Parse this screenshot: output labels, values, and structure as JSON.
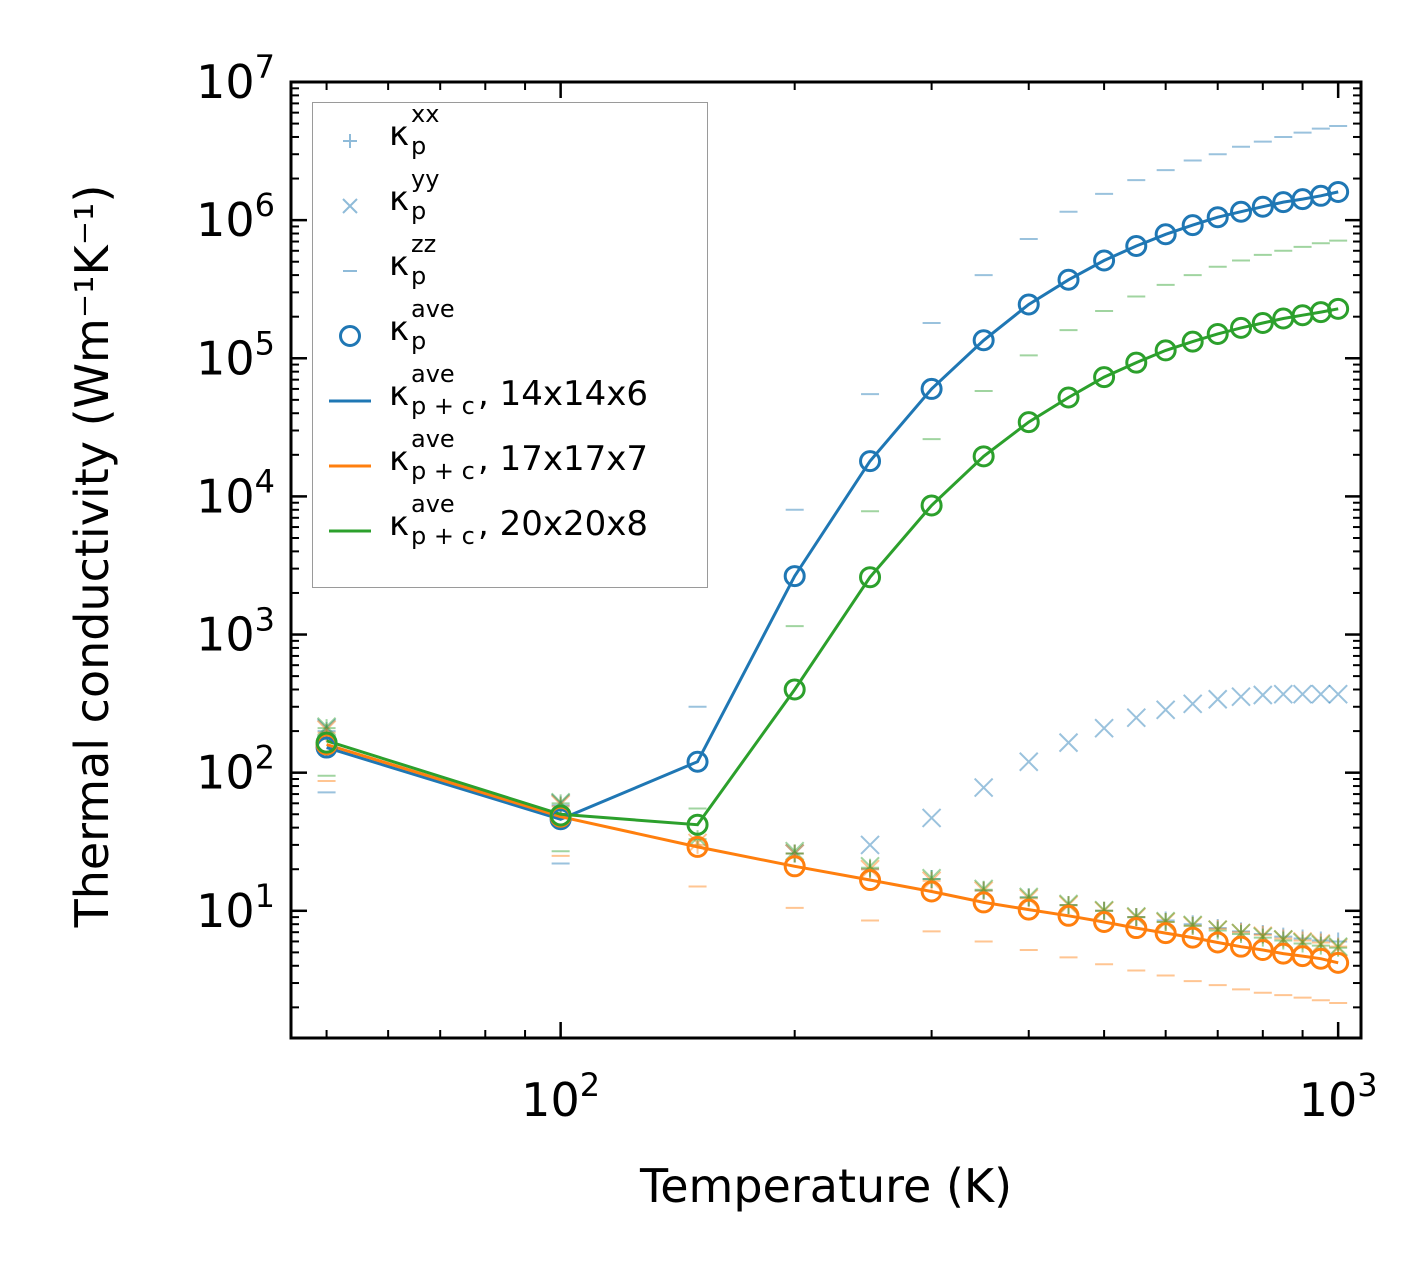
{
  "chart_data": {
    "type": "scatter",
    "title": "",
    "xlabel": "Temperature (K)",
    "ylabel": "Thermal conductivity (Wm⁻¹K⁻¹)",
    "xscale": "log",
    "yscale": "log",
    "xlim": [
      45,
      1070
    ],
    "ylim": [
      1.2,
      10000000
    ],
    "x_ticks": [
      {
        "value": 100,
        "base": "10",
        "exp": "2"
      },
      {
        "value": 1000,
        "base": "10",
        "exp": "3"
      }
    ],
    "y_ticks": [
      {
        "value": 10,
        "base": "10",
        "exp": "1"
      },
      {
        "value": 100,
        "base": "10",
        "exp": "2"
      },
      {
        "value": 1000,
        "base": "10",
        "exp": "3"
      },
      {
        "value": 10000,
        "base": "10",
        "exp": "4"
      },
      {
        "value": 100000,
        "base": "10",
        "exp": "5"
      },
      {
        "value": 1000000,
        "base": "10",
        "exp": "6"
      },
      {
        "value": 10000000,
        "base": "10",
        "exp": "7"
      }
    ],
    "legend_position": "upper-left",
    "colors": {
      "c14": "#1f77b4",
      "c17": "#ff7f0e",
      "c20": "#2ca02c"
    },
    "x": [
      50,
      100,
      150,
      200,
      250,
      300,
      350,
      400,
      450,
      500,
      550,
      600,
      650,
      700,
      750,
      800,
      850,
      900,
      950,
      1000
    ],
    "series": [
      {
        "name": "kp_xx_14x14x6",
        "grid": "14x14x6",
        "marker": "plus",
        "color": "#1f77b4",
        "alpha": 0.45,
        "values": [
          200,
          58,
          null,
          26,
          20,
          17,
          14,
          12.5,
          11,
          10,
          9,
          8.5,
          8,
          7.5,
          7.1,
          6.8,
          6.5,
          6.3,
          6.1,
          6.0
        ]
      },
      {
        "name": "kp_yy_14x14x6",
        "grid": "14x14x6",
        "marker": "x",
        "color": "#1f77b4",
        "alpha": 0.45,
        "values": [
          210,
          60,
          null,
          26,
          30,
          47,
          78,
          120,
          165,
          210,
          250,
          285,
          315,
          340,
          355,
          365,
          370,
          370,
          370,
          370
        ]
      },
      {
        "name": "kp_zz_14x14x6",
        "grid": "14x14x6",
        "marker": "dash",
        "color": "#1f77b4",
        "alpha": 0.45,
        "values": [
          72,
          22,
          300,
          8000,
          55000,
          180000,
          400000,
          730000,
          1150000,
          1550000,
          1950000,
          2300000,
          2700000,
          3000000,
          3400000,
          3700000,
          4000000,
          4300000,
          4600000,
          4800000
        ]
      },
      {
        "name": "kp_ave_14x14x6",
        "grid": "14x14x6",
        "marker": "circle",
        "color": "#1f77b4",
        "alpha": 1,
        "values": [
          152,
          46,
          120,
          2650,
          18000,
          60000,
          135000,
          245000,
          370000,
          510000,
          650000,
          790000,
          920000,
          1050000,
          1150000,
          1250000,
          1350000,
          1420000,
          1500000,
          1600000
        ]
      },
      {
        "name": "kp_xx_17x17x7",
        "grid": "17x17x7",
        "marker": "plus",
        "color": "#ff7f0e",
        "alpha": 0.45,
        "values": [
          195,
          57,
          30,
          26,
          20,
          16.5,
          14,
          12.3,
          11,
          10,
          9,
          8.3,
          7.8,
          7.4,
          7.0,
          6.7,
          6.3,
          6.1,
          5.9,
          5.5
        ]
      },
      {
        "name": "kp_yy_17x17x7",
        "grid": "17x17x7",
        "marker": "x",
        "color": "#ff7f0e",
        "alpha": 0.45,
        "values": [
          205,
          59,
          31,
          26,
          20,
          16.5,
          14,
          12.3,
          11,
          10,
          9,
          8.3,
          7.8,
          7.3,
          6.9,
          6.6,
          6.2,
          6.0,
          5.8,
          5.4
        ]
      },
      {
        "name": "kp_zz_17x17x7",
        "grid": "17x17x7",
        "marker": "dash",
        "color": "#ff7f0e",
        "alpha": 0.45,
        "values": [
          87,
          25,
          15,
          10.5,
          8.5,
          7.1,
          6.0,
          5.2,
          4.6,
          4.1,
          3.7,
          3.4,
          3.1,
          2.9,
          2.7,
          2.55,
          2.45,
          2.35,
          2.25,
          2.15
        ]
      },
      {
        "name": "kp_ave_17x17x7",
        "grid": "17x17x7",
        "marker": "circle",
        "color": "#ff7f0e",
        "alpha": 1,
        "values": [
          160,
          48,
          29,
          21,
          16.7,
          13.8,
          11.5,
          10.2,
          9.2,
          8.3,
          7.5,
          6.9,
          6.4,
          5.9,
          5.5,
          5.2,
          4.9,
          4.7,
          4.5,
          4.2
        ]
      },
      {
        "name": "kp_xx_20x20x8",
        "grid": "20x20x8",
        "marker": "plus",
        "color": "#2ca02c",
        "alpha": 0.45,
        "values": [
          210,
          60,
          33,
          26,
          20.5,
          17,
          14.2,
          12.5,
          11,
          10,
          9,
          8.3,
          7.8,
          7.2,
          6.8,
          6.4,
          6.1,
          5.8,
          5.6,
          5.4
        ]
      },
      {
        "name": "kp_yy_20x20x8",
        "grid": "20x20x8",
        "marker": "x",
        "color": "#2ca02c",
        "alpha": 0.45,
        "values": [
          215,
          61,
          34,
          27,
          21,
          17.2,
          14.4,
          12.6,
          11.2,
          10.1,
          9.1,
          8.4,
          7.9,
          7.3,
          6.9,
          6.5,
          6.2,
          5.9,
          5.7,
          5.5
        ]
      },
      {
        "name": "kp_zz_20x20x8",
        "grid": "20x20x8",
        "marker": "dash",
        "color": "#2ca02c",
        "alpha": 0.45,
        "values": [
          95,
          27,
          55,
          1150,
          7800,
          26000,
          58000,
          105000,
          160000,
          220000,
          280000,
          340000,
          400000,
          460000,
          510000,
          560000,
          600000,
          640000,
          680000,
          710000
        ]
      },
      {
        "name": "kp_ave_20x20x8",
        "grid": "20x20x8",
        "marker": "circle",
        "color": "#2ca02c",
        "alpha": 1,
        "values": [
          165,
          49,
          42,
          400,
          2600,
          8600,
          19500,
          34500,
          52000,
          73000,
          93000,
          114000,
          132000,
          150000,
          166000,
          180000,
          194000,
          205000,
          216000,
          228000
        ]
      },
      {
        "name": "kpc_ave_14x14x6",
        "grid": "14x14x6",
        "marker": "line",
        "color": "#1f77b4",
        "alpha": 1,
        "values": [
          152,
          46,
          120,
          2650,
          18000,
          60000,
          135000,
          245000,
          370000,
          510000,
          650000,
          790000,
          920000,
          1050000,
          1150000,
          1250000,
          1350000,
          1420000,
          1500000,
          1600000
        ]
      },
      {
        "name": "kpc_ave_17x17x7",
        "grid": "17x17x7",
        "marker": "line",
        "color": "#ff7f0e",
        "alpha": 1,
        "values": [
          160,
          48,
          29,
          21,
          16.7,
          13.8,
          11.5,
          10.2,
          9.2,
          8.3,
          7.5,
          6.9,
          6.4,
          5.9,
          5.5,
          5.2,
          4.9,
          4.7,
          4.5,
          4.2
        ]
      },
      {
        "name": "kpc_ave_20x20x8",
        "grid": "20x20x8",
        "marker": "line",
        "color": "#2ca02c",
        "alpha": 1,
        "values": [
          170,
          50,
          42,
          400,
          2600,
          8600,
          19500,
          34500,
          52000,
          73000,
          93000,
          114000,
          132000,
          150000,
          166000,
          180000,
          194000,
          205000,
          216000,
          228000
        ]
      }
    ],
    "legend": [
      {
        "marker": "plus",
        "color": "#1f77b4",
        "kappa": "κ",
        "sup": "xx",
        "sub": "p",
        "rest": ""
      },
      {
        "marker": "x",
        "color": "#1f77b4",
        "kappa": "κ",
        "sup": "yy",
        "sub": "p",
        "rest": ""
      },
      {
        "marker": "dash",
        "color": "#1f77b4",
        "kappa": "κ",
        "sup": "zz",
        "sub": "p",
        "rest": ""
      },
      {
        "marker": "circle",
        "color": "#1f77b4",
        "kappa": "κ",
        "sup": "ave",
        "sub": "p",
        "rest": ""
      },
      {
        "marker": "line",
        "color": "#1f77b4",
        "kappa": "κ",
        "sup": "ave",
        "sub": "p + c",
        "rest": ", 14x14x6"
      },
      {
        "marker": "line",
        "color": "#ff7f0e",
        "kappa": "κ",
        "sup": "ave",
        "sub": "p + c",
        "rest": ", 17x17x7"
      },
      {
        "marker": "line",
        "color": "#2ca02c",
        "kappa": "κ",
        "sup": "ave",
        "sub": "p + c",
        "rest": ", 20x20x8"
      }
    ]
  }
}
